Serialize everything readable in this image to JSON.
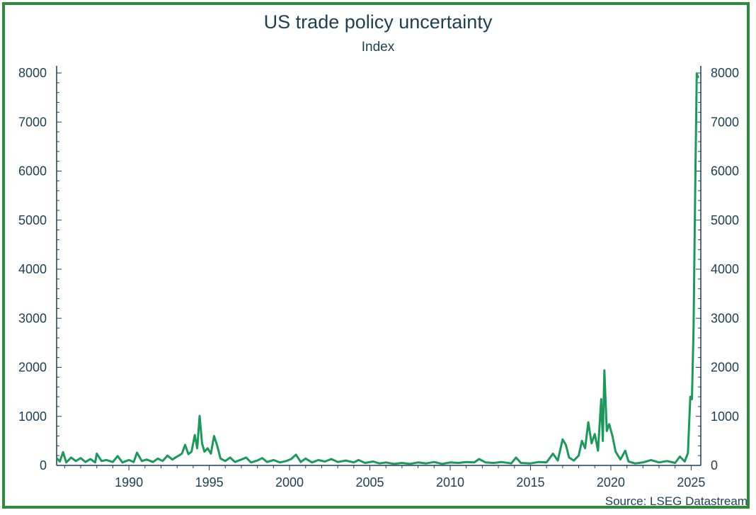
{
  "chart_data": {
    "type": "line",
    "title": "US trade policy uncertainty",
    "subtitle": "Index",
    "source": "Source: LSEG Datastream",
    "xlim": [
      1985.5,
      2025.6
    ],
    "ylim": [
      0,
      8000
    ],
    "yticks": [
      0,
      1000,
      2000,
      3000,
      4000,
      5000,
      6000,
      7000,
      8000
    ],
    "xticks": [
      1990,
      1995,
      2000,
      2005,
      2010,
      2015,
      2020,
      2025
    ],
    "line_color": "#1a9a5a",
    "series": [
      {
        "name": "US trade policy uncertainty index",
        "points": [
          [
            1985.5,
            150
          ],
          [
            1985.7,
            80
          ],
          [
            1985.9,
            270
          ],
          [
            1986.1,
            60
          ],
          [
            1986.4,
            160
          ],
          [
            1986.7,
            90
          ],
          [
            1987.0,
            150
          ],
          [
            1987.3,
            70
          ],
          [
            1987.6,
            130
          ],
          [
            1987.9,
            60
          ],
          [
            1988.0,
            240
          ],
          [
            1988.3,
            90
          ],
          [
            1988.6,
            110
          ],
          [
            1989.0,
            70
          ],
          [
            1989.3,
            190
          ],
          [
            1989.6,
            60
          ],
          [
            1990.0,
            110
          ],
          [
            1990.3,
            70
          ],
          [
            1990.5,
            260
          ],
          [
            1990.8,
            90
          ],
          [
            1991.1,
            120
          ],
          [
            1991.5,
            70
          ],
          [
            1991.8,
            140
          ],
          [
            1992.1,
            90
          ],
          [
            1992.4,
            200
          ],
          [
            1992.7,
            120
          ],
          [
            1993.0,
            180
          ],
          [
            1993.3,
            240
          ],
          [
            1993.5,
            420
          ],
          [
            1993.7,
            230
          ],
          [
            1993.9,
            280
          ],
          [
            1994.1,
            620
          ],
          [
            1994.25,
            350
          ],
          [
            1994.4,
            1010
          ],
          [
            1994.55,
            450
          ],
          [
            1994.7,
            280
          ],
          [
            1994.9,
            350
          ],
          [
            1995.1,
            240
          ],
          [
            1995.3,
            600
          ],
          [
            1995.5,
            400
          ],
          [
            1995.7,
            140
          ],
          [
            1996.0,
            90
          ],
          [
            1996.3,
            160
          ],
          [
            1996.6,
            70
          ],
          [
            1997.0,
            120
          ],
          [
            1997.3,
            160
          ],
          [
            1997.6,
            60
          ],
          [
            1998.0,
            100
          ],
          [
            1998.3,
            150
          ],
          [
            1998.6,
            70
          ],
          [
            1999.0,
            110
          ],
          [
            1999.4,
            60
          ],
          [
            1999.8,
            90
          ],
          [
            2000.1,
            130
          ],
          [
            2000.4,
            220
          ],
          [
            2000.7,
            70
          ],
          [
            2001.0,
            140
          ],
          [
            2001.4,
            60
          ],
          [
            2001.8,
            110
          ],
          [
            2002.2,
            80
          ],
          [
            2002.6,
            130
          ],
          [
            2003.0,
            70
          ],
          [
            2003.5,
            100
          ],
          [
            2004.0,
            60
          ],
          [
            2004.3,
            110
          ],
          [
            2004.7,
            50
          ],
          [
            2005.2,
            80
          ],
          [
            2005.6,
            40
          ],
          [
            2006.0,
            60
          ],
          [
            2006.5,
            30
          ],
          [
            2007.0,
            50
          ],
          [
            2007.5,
            30
          ],
          [
            2008.0,
            60
          ],
          [
            2008.5,
            40
          ],
          [
            2009.0,
            70
          ],
          [
            2009.5,
            30
          ],
          [
            2010.0,
            60
          ],
          [
            2010.5,
            50
          ],
          [
            2011.0,
            70
          ],
          [
            2011.5,
            60
          ],
          [
            2011.8,
            130
          ],
          [
            2012.2,
            60
          ],
          [
            2012.7,
            50
          ],
          [
            2013.2,
            70
          ],
          [
            2013.8,
            40
          ],
          [
            2014.1,
            160
          ],
          [
            2014.4,
            50
          ],
          [
            2015.0,
            40
          ],
          [
            2015.5,
            70
          ],
          [
            2016.0,
            60
          ],
          [
            2016.4,
            240
          ],
          [
            2016.7,
            100
          ],
          [
            2017.0,
            530
          ],
          [
            2017.2,
            420
          ],
          [
            2017.4,
            160
          ],
          [
            2017.7,
            100
          ],
          [
            2018.0,
            200
          ],
          [
            2018.2,
            500
          ],
          [
            2018.4,
            350
          ],
          [
            2018.6,
            880
          ],
          [
            2018.8,
            450
          ],
          [
            2019.0,
            640
          ],
          [
            2019.2,
            300
          ],
          [
            2019.4,
            1350
          ],
          [
            2019.5,
            500
          ],
          [
            2019.6,
            1940
          ],
          [
            2019.75,
            700
          ],
          [
            2019.9,
            840
          ],
          [
            2020.1,
            600
          ],
          [
            2020.3,
            280
          ],
          [
            2020.6,
            120
          ],
          [
            2020.9,
            300
          ],
          [
            2021.1,
            80
          ],
          [
            2021.5,
            40
          ],
          [
            2022.0,
            60
          ],
          [
            2022.5,
            110
          ],
          [
            2023.0,
            60
          ],
          [
            2023.5,
            90
          ],
          [
            2024.0,
            50
          ],
          [
            2024.3,
            180
          ],
          [
            2024.6,
            80
          ],
          [
            2024.8,
            250
          ],
          [
            2024.95,
            1400
          ],
          [
            2025.05,
            1350
          ],
          [
            2025.15,
            2800
          ],
          [
            2025.25,
            5600
          ],
          [
            2025.35,
            7980
          ],
          [
            2025.45,
            7900
          ]
        ]
      }
    ]
  }
}
